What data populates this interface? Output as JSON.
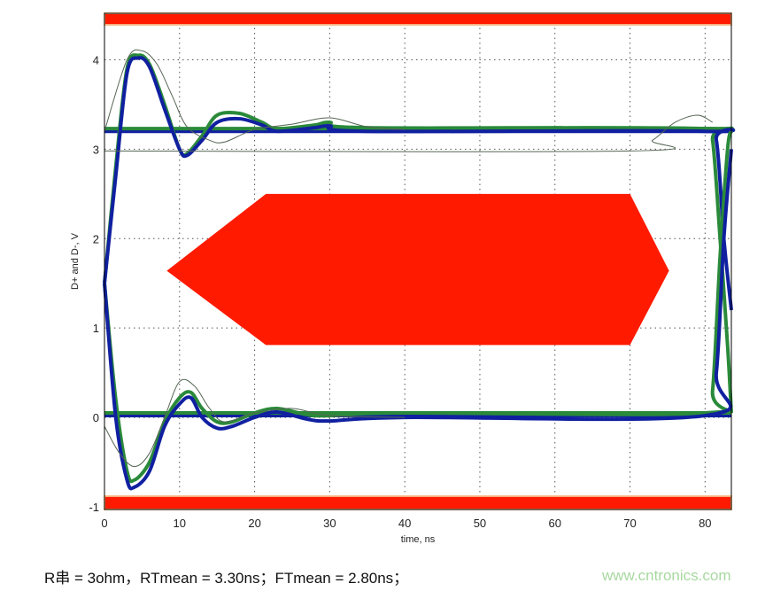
{
  "chart_data": {
    "type": "line",
    "xlabel": "time, ns",
    "ylabel": "D+ and D-, V",
    "xlim": [
      0,
      83.5
    ],
    "ylim": [
      -1.03,
      4.52
    ],
    "xticks": [
      0,
      10,
      20,
      30,
      40,
      50,
      60,
      70,
      80
    ],
    "yticks": [
      -1,
      0,
      1,
      2,
      3,
      4
    ],
    "grid": true,
    "mask": {
      "color": "#ff1a00",
      "top_band": [
        4.39,
        4.52
      ],
      "bottom_band": [
        -1.03,
        -0.88
      ],
      "hexagon": [
        [
          8.3,
          1.64
        ],
        [
          21.5,
          2.5
        ],
        [
          70,
          2.5
        ],
        [
          75.2,
          1.64
        ],
        [
          70,
          0.81
        ],
        [
          21.5,
          0.81
        ]
      ]
    },
    "series": [
      {
        "color": "#2a8a3a",
        "points": [
          [
            0,
            1.5
          ],
          [
            1.5,
            2.8
          ],
          [
            3,
            3.9
          ],
          [
            4.5,
            4.05
          ],
          [
            6,
            3.95
          ],
          [
            8,
            3.5
          ],
          [
            10,
            3.0
          ],
          [
            11,
            2.95
          ],
          [
            13,
            3.15
          ],
          [
            15,
            3.38
          ],
          [
            18,
            3.4
          ],
          [
            21,
            3.3
          ],
          [
            23,
            3.23
          ],
          [
            28,
            3.27
          ],
          [
            30,
            3.3
          ],
          [
            35,
            3.24
          ],
          [
            80,
            3.23
          ],
          [
            81,
            3.1
          ],
          [
            82,
            2.0
          ],
          [
            83,
            0.8
          ],
          [
            83.5,
            0.05
          ]
        ]
      },
      {
        "color": "#1020a0",
        "points": [
          [
            0,
            1.5
          ],
          [
            1.5,
            2.7
          ],
          [
            3,
            3.85
          ],
          [
            4.5,
            4.02
          ],
          [
            6,
            3.92
          ],
          [
            8,
            3.45
          ],
          [
            10,
            3.0
          ],
          [
            11,
            2.93
          ],
          [
            13,
            3.1
          ],
          [
            15,
            3.3
          ],
          [
            18,
            3.34
          ],
          [
            21,
            3.27
          ],
          [
            23,
            3.2
          ],
          [
            28,
            3.24
          ],
          [
            30,
            3.26
          ],
          [
            35,
            3.2
          ],
          [
            80,
            3.2
          ],
          [
            81.5,
            3.1
          ],
          [
            82.5,
            2.0
          ],
          [
            83.5,
            1.2
          ]
        ]
      },
      {
        "color": "#2a8a3a",
        "points": [
          [
            0,
            1.5
          ],
          [
            1.5,
            0.2
          ],
          [
            3,
            -0.6
          ],
          [
            4,
            -0.7
          ],
          [
            6,
            -0.5
          ],
          [
            8,
            -0.05
          ],
          [
            10,
            0.22
          ],
          [
            11.5,
            0.28
          ],
          [
            13,
            0.1
          ],
          [
            15,
            -0.05
          ],
          [
            17,
            -0.05
          ],
          [
            20,
            0.05
          ],
          [
            23,
            0.1
          ],
          [
            27,
            0.03
          ],
          [
            30,
            0.02
          ],
          [
            40,
            0.05
          ],
          [
            80,
            0.05
          ],
          [
            81,
            0.3
          ],
          [
            82,
            1.8
          ],
          [
            83,
            3.0
          ],
          [
            83.5,
            3.2
          ]
        ]
      },
      {
        "color": "#1020a0",
        "points": [
          [
            0,
            1.5
          ],
          [
            1.5,
            0.0
          ],
          [
            3,
            -0.7
          ],
          [
            4,
            -0.78
          ],
          [
            6,
            -0.6
          ],
          [
            8,
            -0.1
          ],
          [
            10,
            0.15
          ],
          [
            11.5,
            0.22
          ],
          [
            13,
            0.0
          ],
          [
            15,
            -0.12
          ],
          [
            17,
            -0.1
          ],
          [
            20,
            0.0
          ],
          [
            23,
            0.06
          ],
          [
            27,
            -0.02
          ],
          [
            30,
            -0.04
          ],
          [
            40,
            0.0
          ],
          [
            80,
            0.02
          ],
          [
            81.5,
            0.5
          ],
          [
            82.5,
            2.0
          ],
          [
            83.5,
            3.0
          ]
        ]
      },
      {
        "color": "#556655",
        "points": [
          [
            0,
            2.98
          ],
          [
            70,
            2.98
          ],
          [
            73,
            3.1
          ],
          [
            76,
            3.3
          ],
          [
            79,
            3.38
          ],
          [
            81,
            3.3
          ]
        ]
      },
      {
        "color": "#556655",
        "points": [
          [
            0,
            -0.1
          ],
          [
            2,
            -0.4
          ],
          [
            4,
            -0.55
          ],
          [
            6,
            -0.4
          ],
          [
            8,
            0.0
          ],
          [
            10,
            0.4
          ],
          [
            12,
            0.35
          ],
          [
            14,
            0.1
          ],
          [
            16,
            -0.05
          ],
          [
            20,
            0.05
          ],
          [
            25,
            0.1
          ],
          [
            30,
            0.02
          ],
          [
            40,
            0.0
          ]
        ]
      },
      {
        "color": "#556655",
        "points": [
          [
            0,
            3.2
          ],
          [
            3,
            4.0
          ],
          [
            5,
            4.1
          ],
          [
            7,
            3.95
          ],
          [
            9,
            3.6
          ],
          [
            11,
            3.25
          ],
          [
            14,
            3.1
          ],
          [
            16,
            3.08
          ],
          [
            20,
            3.22
          ],
          [
            25,
            3.28
          ],
          [
            30,
            3.35
          ],
          [
            35,
            3.25
          ],
          [
            40,
            3.22
          ]
        ]
      }
    ],
    "levels": [
      {
        "y": 3.2,
        "color": "#1020a0"
      },
      {
        "y": 3.23,
        "color": "#2a8a3a"
      },
      {
        "y": 0.02,
        "color": "#1020a0"
      },
      {
        "y": 0.05,
        "color": "#2a8a3a"
      }
    ]
  },
  "caption": "R串 = 3ohm，RTmean = 3.30ns；FTmean = 2.80ns；",
  "watermark": "www.cntronics.com"
}
